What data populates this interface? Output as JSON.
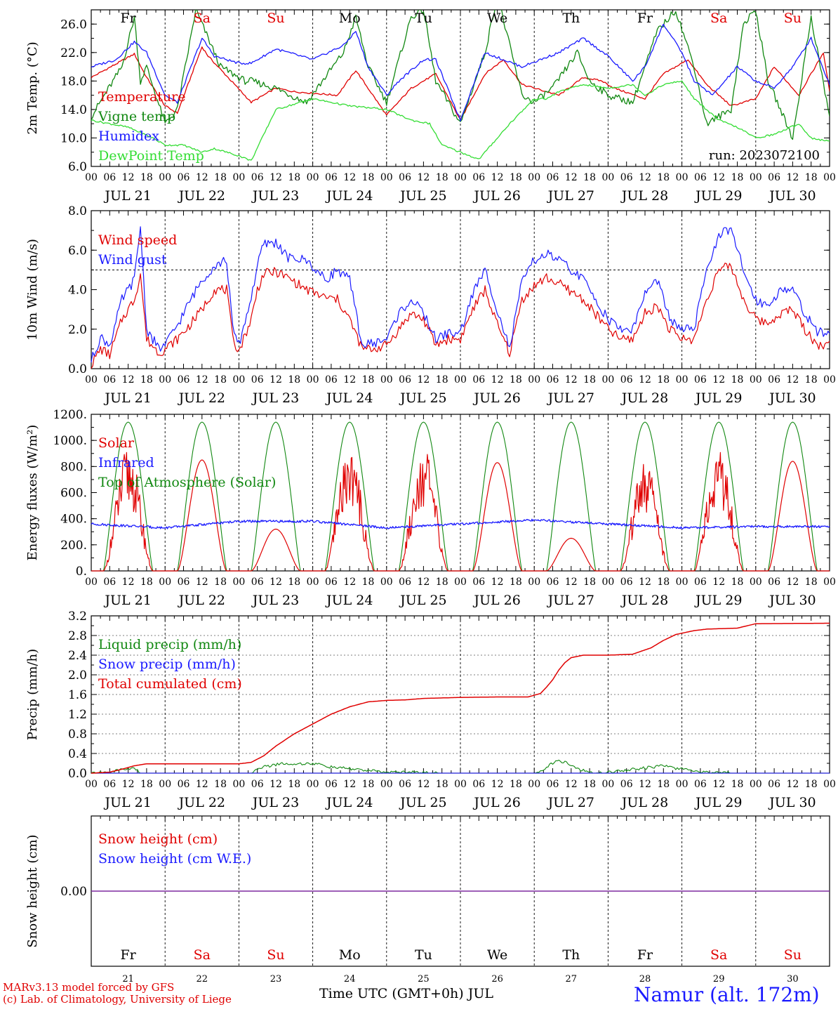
{
  "colors": {
    "red": "#e00000",
    "green": "#118811",
    "lightgreen": "#33dd33",
    "blue": "#1a1aff",
    "purple": "#7f2a9f",
    "axis": "#000000"
  },
  "days": [
    "JUL 21",
    "JUL 22",
    "JUL 23",
    "JUL 24",
    "JUL 25",
    "JUL 26",
    "JUL 27",
    "JUL 28",
    "JUL 29",
    "JUL 30"
  ],
  "day_numbers": [
    "21",
    "22",
    "23",
    "24",
    "25",
    "26",
    "27",
    "28",
    "29",
    "30"
  ],
  "weekdays": [
    "Fr",
    "Sa",
    "Su",
    "Mo",
    "Tu",
    "We",
    "Th",
    "Fr",
    "Sa",
    "Su"
  ],
  "weekend_flags": [
    false,
    true,
    true,
    false,
    false,
    false,
    false,
    false,
    true,
    true
  ],
  "hour_ticks": [
    "00",
    "06",
    "12",
    "18"
  ],
  "run_label": "run: 2023072100",
  "footer": {
    "credit_line1": "MARv3.13 model forced by GFS",
    "credit_line2": "(c) Lab. of Climatology, University of Liege",
    "x_title": "Time UTC (GMT+0h) JUL",
    "station": "Namur (alt. 172m)"
  },
  "chart_data": [
    {
      "type": "line",
      "id": "temperature",
      "ylabel": "2m Temp. (°C)",
      "ylim": [
        6.0,
        28.0
      ],
      "yticks": [
        "6.0",
        "10.0",
        "14.0",
        "18.0",
        "22.0",
        "26.0"
      ],
      "ytick_values": [
        6,
        10,
        14,
        18,
        22,
        26
      ],
      "series": [
        {
          "name": "Temperature",
          "color": "red",
          "x": [
            0,
            14,
            18,
            24,
            28,
            36,
            38,
            52,
            60,
            66,
            80,
            86,
            96,
            104,
            112,
            120,
            128,
            134,
            140,
            152,
            160,
            166,
            170,
            180,
            186,
            194,
            200,
            208,
            216,
            222,
            230,
            238,
            240
          ],
          "y": [
            18.5,
            21.8,
            18.5,
            14.5,
            13.5,
            22.8,
            21.5,
            15,
            17,
            16.5,
            16,
            19.5,
            13.2,
            17,
            19,
            12.5,
            19,
            21,
            17.5,
            16,
            18.5,
            18,
            17,
            15.5,
            19,
            21,
            17.5,
            14.5,
            15.5,
            20,
            16,
            22,
            16.5
          ]
        },
        {
          "name": "Vigne temp",
          "color": "green",
          "x": [
            0,
            10,
            14,
            16,
            18,
            24,
            28,
            34,
            38,
            42,
            50,
            52,
            60,
            70,
            82,
            86,
            90,
            96,
            104,
            108,
            112,
            120,
            128,
            132,
            140,
            144,
            150,
            158,
            162,
            168,
            176,
            180,
            184,
            190,
            196,
            200,
            208,
            212,
            216,
            220,
            228,
            234,
            240
          ],
          "y": [
            13,
            20,
            27,
            18,
            20,
            12,
            14,
            28,
            24,
            20,
            18,
            18,
            17,
            15,
            22,
            27,
            20,
            15,
            27,
            28,
            18,
            12,
            22,
            30,
            16,
            15,
            17,
            22,
            18,
            16,
            15,
            20,
            25,
            28,
            20,
            12,
            14,
            26,
            28,
            18,
            10,
            27,
            13
          ]
        },
        {
          "name": "Humidex",
          "color": "blue",
          "x": [
            0,
            8,
            14,
            18,
            24,
            28,
            36,
            40,
            48,
            52,
            60,
            72,
            82,
            86,
            90,
            96,
            100,
            108,
            112,
            120,
            128,
            134,
            140,
            152,
            160,
            168,
            176,
            180,
            186,
            192,
            196,
            202,
            210,
            216,
            222,
            228,
            234,
            240
          ],
          "y": [
            20,
            21,
            23.5,
            22,
            16,
            15,
            24,
            21.5,
            20.5,
            20.5,
            22.5,
            21,
            23,
            25,
            20,
            16,
            18,
            21,
            21,
            12.5,
            22,
            21,
            20,
            22,
            24,
            21.5,
            18,
            20,
            26,
            22,
            18,
            16,
            20,
            18,
            17,
            20,
            24,
            17.5
          ]
        },
        {
          "name": "DewPoint Temp",
          "color": "lightgreen",
          "x": [
            0,
            12,
            20,
            24,
            30,
            36,
            40,
            48,
            52,
            60,
            72,
            84,
            96,
            104,
            110,
            114,
            120,
            126,
            132,
            136,
            144,
            148,
            152,
            160,
            168,
            176,
            180,
            186,
            192,
            196,
            204,
            210,
            216,
            222,
            230,
            234,
            240
          ],
          "y": [
            12.5,
            11.5,
            10,
            9,
            9,
            8,
            8.5,
            7.5,
            6.8,
            14,
            15.5,
            14.5,
            14,
            12.5,
            12,
            9,
            8,
            7,
            10,
            12,
            15.5,
            15.5,
            16.5,
            17.5,
            17,
            17.5,
            16,
            17.5,
            18,
            15.5,
            12.5,
            11.5,
            10,
            10.5,
            12,
            10,
            9.5
          ]
        }
      ],
      "legend_placement": "left"
    },
    {
      "type": "line",
      "id": "wind",
      "ylabel": "10m Wind (m/s)",
      "ylim": [
        0.0,
        8.0
      ],
      "yticks": [
        "0.0",
        "2.0",
        "4.0",
        "6.0",
        "8.0"
      ],
      "ytick_values": [
        0,
        2,
        4,
        6,
        8
      ],
      "reference_line": 5.0,
      "series": [
        {
          "name": "Wind speed",
          "color": "red",
          "x": [
            0,
            3,
            6,
            10,
            14,
            16,
            18,
            22,
            24,
            28,
            32,
            36,
            40,
            44,
            46,
            48,
            52,
            54,
            56,
            60,
            64,
            70,
            76,
            80,
            84,
            88,
            92,
            96,
            100,
            104,
            108,
            112,
            116,
            120,
            124,
            128,
            132,
            136,
            140,
            144,
            148,
            152,
            160,
            168,
            172,
            176,
            180,
            184,
            188,
            192,
            196,
            200,
            204,
            208,
            212,
            216,
            220,
            224,
            228,
            232,
            236,
            240
          ],
          "y": [
            0.2,
            1,
            0.7,
            2.5,
            3.5,
            4.8,
            1.5,
            0.8,
            1,
            1.5,
            2.2,
            3,
            4,
            4,
            1.5,
            0.9,
            2.5,
            4,
            4.8,
            4.9,
            4.6,
            4,
            3.6,
            3.5,
            2.5,
            1,
            1,
            1.2,
            2,
            2.8,
            2.5,
            1.2,
            1.5,
            1.5,
            3,
            4,
            2.2,
            0.8,
            3.5,
            4.2,
            4.6,
            4.3,
            3.5,
            2,
            1.5,
            1.5,
            2.8,
            3.2,
            2,
            1.5,
            1.5,
            3.5,
            5,
            5.2,
            3.5,
            2.5,
            2.3,
            2.8,
            3,
            2,
            1.2,
            1.2
          ]
        },
        {
          "name": "Wind gust",
          "color": "blue",
          "x": [
            0,
            3,
            6,
            10,
            14,
            16,
            18,
            22,
            24,
            28,
            32,
            36,
            40,
            44,
            46,
            48,
            52,
            54,
            56,
            60,
            64,
            70,
            76,
            80,
            84,
            88,
            92,
            96,
            100,
            104,
            108,
            112,
            116,
            120,
            124,
            128,
            132,
            136,
            140,
            144,
            148,
            152,
            160,
            168,
            172,
            176,
            180,
            184,
            188,
            192,
            196,
            200,
            204,
            208,
            212,
            216,
            220,
            224,
            228,
            232,
            236,
            240
          ],
          "y": [
            0.4,
            1.6,
            1.2,
            3.5,
            4.5,
            7.2,
            2,
            1,
            1.2,
            2.2,
            3.4,
            4.5,
            5.2,
            5.5,
            2,
            1.2,
            3.6,
            5.2,
            6.3,
            6.4,
            5.6,
            5.5,
            4.5,
            5,
            4.5,
            1.2,
            1.3,
            1.5,
            2.8,
            3.5,
            2.8,
            1.5,
            1.8,
            1.8,
            3.8,
            5,
            3,
            1,
            4.4,
            5.5,
            5.8,
            5.5,
            4.5,
            2.5,
            2,
            2,
            3.8,
            4.5,
            2.5,
            2,
            2,
            5,
            6.8,
            7,
            5,
            3.5,
            3.2,
            4,
            4,
            2.8,
            1.8,
            1.9
          ]
        }
      ],
      "legend_placement": "left"
    },
    {
      "type": "line",
      "id": "energy",
      "ylabel": "Energy fluxes (W/m²)",
      "ylim": [
        0,
        1200
      ],
      "yticks": [
        "0.",
        "200.",
        "400.",
        "600.",
        "800.",
        "1000.",
        "1200."
      ],
      "ytick_values": [
        0,
        200,
        400,
        600,
        800,
        1000,
        1200
      ],
      "toa_peak": 1140,
      "day_window_hours": [
        4,
        20
      ],
      "solar_peak_per_day": [
        820,
        850,
        320,
        820,
        820,
        830,
        250,
        740,
        820,
        840
      ],
      "infrared_level_per_day": [
        360,
        330,
        380,
        380,
        330,
        360,
        390,
        360,
        330,
        340
      ],
      "series": [
        {
          "name": "Solar",
          "color": "red"
        },
        {
          "name": "Infrared",
          "color": "blue"
        },
        {
          "name": "Top of Atmosphere (Solar)",
          "color": "green"
        }
      ],
      "legend_placement": "left"
    },
    {
      "type": "line",
      "id": "precip",
      "ylabel": "Precip (mm/h)",
      "ylim": [
        0.0,
        3.2
      ],
      "yticks": [
        "0.0",
        "0.4",
        "0.8",
        "1.2",
        "1.6",
        "2.0",
        "2.4",
        "2.8",
        "3.2"
      ],
      "ytick_values": [
        0,
        0.4,
        0.8,
        1.2,
        1.6,
        2.0,
        2.4,
        2.8,
        3.2
      ],
      "series": [
        {
          "name": "Liquid precip (mm/h)",
          "color": "green",
          "x": [
            0,
            6,
            10,
            14,
            16,
            24,
            52,
            54,
            58,
            62,
            66,
            70,
            74,
            78,
            82,
            86,
            90,
            96,
            104,
            114,
            120,
            144,
            148,
            150,
            152,
            154,
            156,
            160,
            164,
            168,
            176,
            182,
            186,
            190,
            196,
            200,
            210,
            240
          ],
          "y": [
            0,
            0.02,
            0.08,
            0.1,
            0,
            0,
            0,
            0.1,
            0.15,
            0.2,
            0.18,
            0.2,
            0.18,
            0.12,
            0.1,
            0.08,
            0.05,
            0.02,
            0.02,
            0,
            0,
            0,
            0.12,
            0.2,
            0.25,
            0.22,
            0.15,
            0.05,
            0,
            0.02,
            0.08,
            0.12,
            0.15,
            0.1,
            0.05,
            0.02,
            0,
            0
          ]
        },
        {
          "name": "Snow precip (mm/h)",
          "color": "blue",
          "x": [
            0,
            240
          ],
          "y": [
            0,
            0
          ]
        },
        {
          "name": "Total cumulated (cm)",
          "color": "red",
          "x": [
            0,
            6,
            10,
            14,
            18,
            24,
            48,
            52,
            56,
            60,
            66,
            72,
            78,
            84,
            90,
            96,
            102,
            108,
            114,
            120,
            132,
            142,
            146,
            148,
            150,
            152,
            154,
            156,
            160,
            168,
            176,
            182,
            186,
            190,
            196,
            200,
            210,
            216,
            240
          ],
          "y": [
            0,
            0.02,
            0.08,
            0.15,
            0.19,
            0.19,
            0.19,
            0.22,
            0.35,
            0.55,
            0.8,
            1.0,
            1.2,
            1.35,
            1.45,
            1.48,
            1.49,
            1.52,
            1.53,
            1.54,
            1.55,
            1.55,
            1.62,
            1.75,
            1.9,
            2.1,
            2.25,
            2.35,
            2.4,
            2.4,
            2.42,
            2.55,
            2.7,
            2.82,
            2.9,
            2.93,
            2.95,
            3.04,
            3.05
          ]
        }
      ],
      "legend_placement": "left"
    },
    {
      "type": "line",
      "id": "snow",
      "ylabel": "Snow height (cm)",
      "yticks": [
        "0.00"
      ],
      "ytick_values": [
        0
      ],
      "series": [
        {
          "name": "Snow height (cm)",
          "color": "red",
          "x": [
            0,
            240
          ],
          "y": [
            0,
            0
          ]
        },
        {
          "name": "Snow height (cm W.E.)",
          "color": "blue",
          "x": [
            0,
            240
          ],
          "y": [
            0,
            0
          ]
        }
      ],
      "legend_placement": "left"
    }
  ]
}
